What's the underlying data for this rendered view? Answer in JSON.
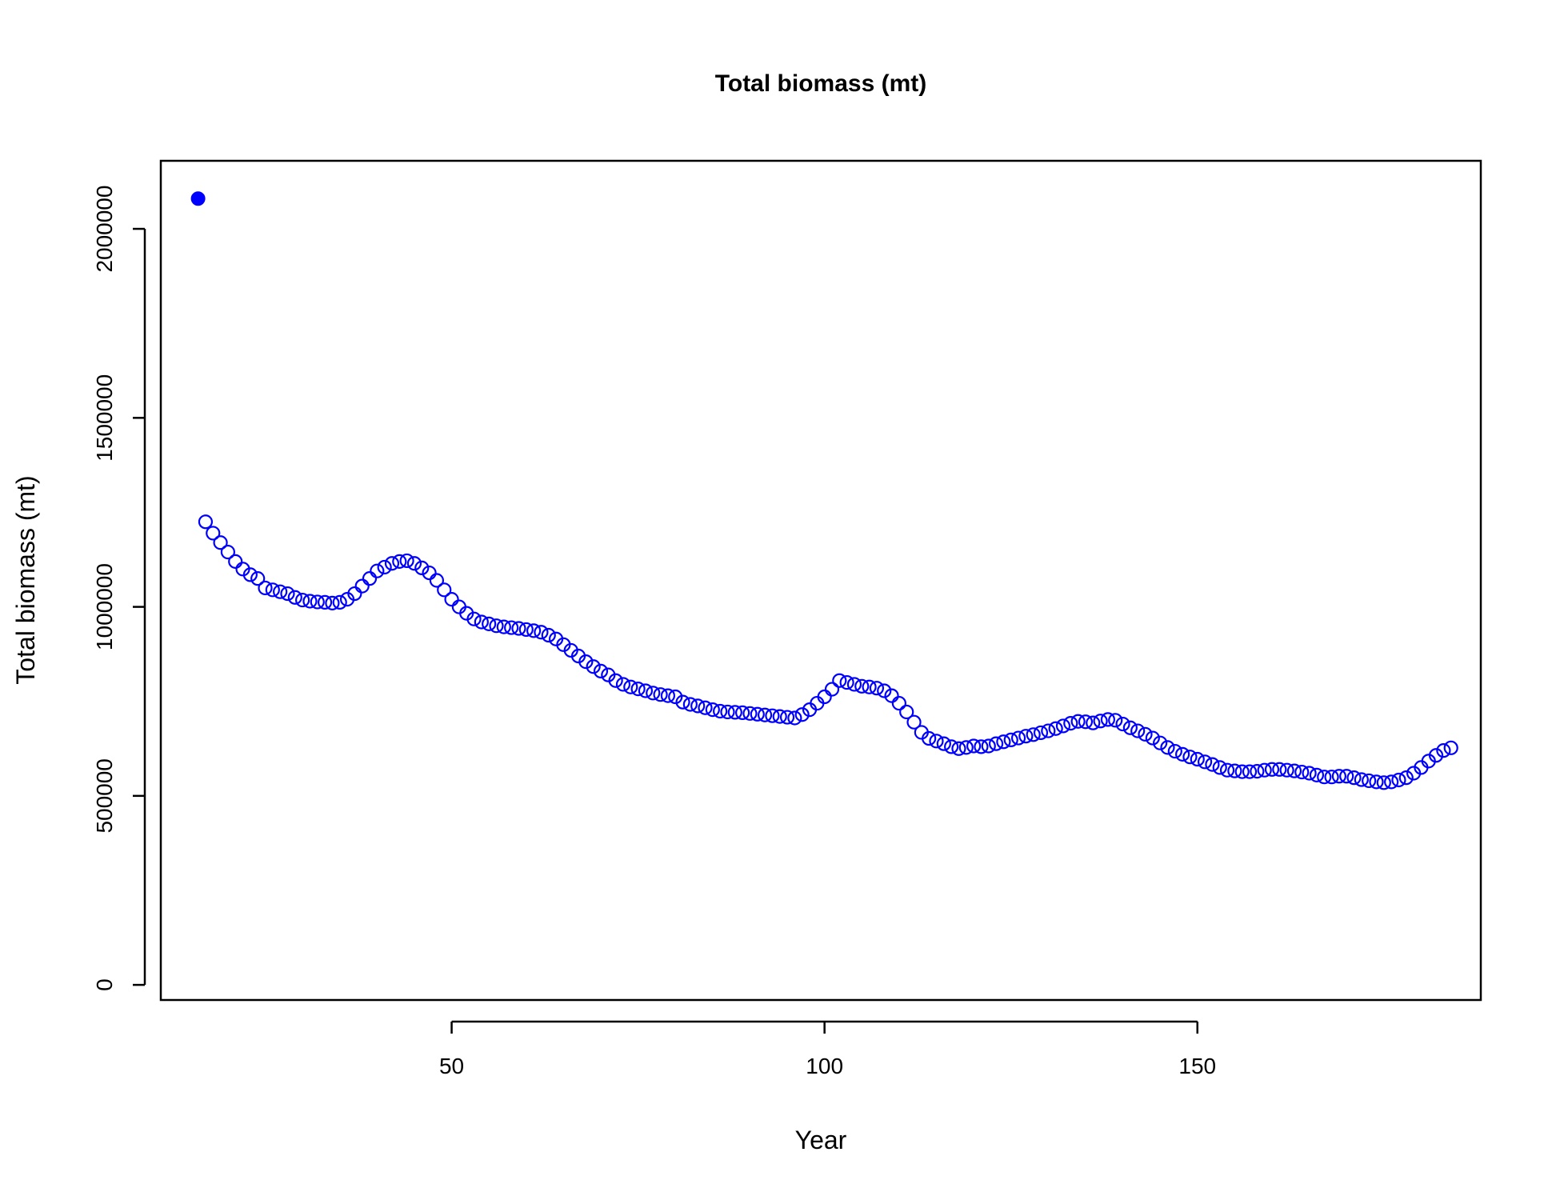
{
  "chart_data": {
    "type": "scatter",
    "title": "Total biomass (mt)",
    "xlabel": "Year",
    "ylabel": "Total biomass (mt)",
    "xlim": [
      11,
      188
    ],
    "ylim": [
      -40000,
      2180000
    ],
    "x_ticks": [
      50,
      100,
      150
    ],
    "x_tick_labels": [
      "50",
      "100",
      "150"
    ],
    "y_ticks": [
      0,
      500000,
      1000000,
      1500000,
      2000000
    ],
    "y_tick_labels": [
      "0",
      "500000",
      "1000000",
      "1500000",
      "2000000"
    ],
    "grid": false,
    "legend": "none",
    "colors": {
      "points": "#0000ff",
      "axes": "#000000"
    },
    "series": [
      {
        "marker": "filled-circle",
        "x": [
          16
        ],
        "y": [
          2080000
        ]
      },
      {
        "marker": "open-circle",
        "x_start": 17,
        "x_step": 1,
        "y": [
          1225000,
          1195000,
          1170000,
          1145000,
          1120000,
          1100000,
          1085000,
          1075000,
          1050000,
          1045000,
          1040000,
          1035000,
          1025000,
          1018000,
          1015000,
          1013000,
          1012000,
          1010000,
          1012000,
          1020000,
          1035000,
          1055000,
          1075000,
          1095000,
          1105000,
          1115000,
          1120000,
          1122000,
          1115000,
          1103000,
          1090000,
          1070000,
          1045000,
          1020000,
          1000000,
          983000,
          968000,
          960000,
          955000,
          950000,
          947000,
          945000,
          943000,
          940000,
          937000,
          933000,
          925000,
          915000,
          900000,
          885000,
          870000,
          855000,
          842000,
          830000,
          820000,
          805000,
          795000,
          788000,
          783000,
          778000,
          772000,
          768000,
          765000,
          762000,
          748000,
          742000,
          738000,
          733000,
          728000,
          724000,
          722000,
          721000,
          720000,
          718000,
          716000,
          714000,
          712000,
          710000,
          708000,
          706000,
          715000,
          728000,
          745000,
          762000,
          782000,
          805000,
          800000,
          795000,
          790000,
          788000,
          785000,
          778000,
          765000,
          745000,
          722000,
          695000,
          668000,
          652000,
          645000,
          638000,
          630000,
          625000,
          628000,
          632000,
          630000,
          632000,
          638000,
          643000,
          648000,
          653000,
          658000,
          662000,
          667000,
          672000,
          678000,
          685000,
          692000,
          697000,
          696000,
          693000,
          698000,
          702000,
          700000,
          690000,
          680000,
          672000,
          663000,
          653000,
          640000,
          628000,
          618000,
          610000,
          603000,
          597000,
          590000,
          583000,
          575000,
          568000,
          566000,
          564000,
          564000,
          565000,
          568000,
          570000,
          570000,
          568000,
          566000,
          563000,
          560000,
          555000,
          550000,
          550000,
          552000,
          552000,
          548000,
          543000,
          540000,
          537000,
          535000,
          537000,
          542000,
          548000,
          560000,
          575000,
          592000,
          607000,
          620000,
          627000
        ]
      }
    ]
  }
}
